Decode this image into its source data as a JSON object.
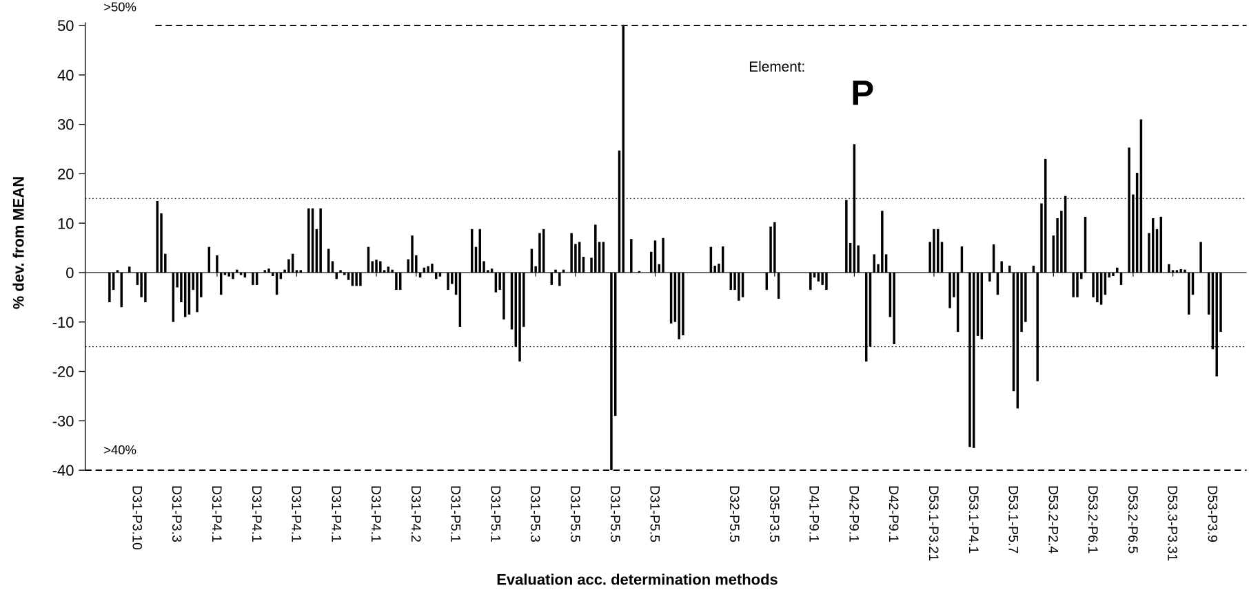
{
  "chart_data": {
    "type": "bar",
    "element_caption": "Element:",
    "element": "P",
    "xlabel": "Evaluation acc. determination methods",
    "ylabel": "% dev. from MEAN",
    "color": "#000000",
    "ylim": [
      -40,
      50
    ],
    "yticks": [
      -40,
      -30,
      -20,
      -10,
      0,
      10,
      20,
      30,
      40,
      50
    ],
    "reference_lines": [
      {
        "value": 50,
        "style": "dashed",
        "label": ">50%"
      },
      {
        "value": -40,
        "style": "dashed",
        "label": ">40%"
      },
      {
        "value": 15,
        "style": "dotted"
      },
      {
        "value": -15,
        "style": "dotted"
      }
    ],
    "categories": [
      null,
      null,
      null,
      null,
      null,
      null,
      null,
      null,
      null,
      null,
      null,
      null,
      null,
      "D31-P3.10",
      null,
      null,
      null,
      null,
      null,
      null,
      null,
      null,
      null,
      "D31-P3.3",
      null,
      null,
      null,
      null,
      null,
      null,
      null,
      null,
      null,
      "D31-P4.1",
      null,
      null,
      null,
      null,
      null,
      null,
      null,
      null,
      null,
      "D31-P4.1",
      null,
      null,
      null,
      null,
      null,
      null,
      null,
      null,
      null,
      "D31-P4.1",
      null,
      null,
      null,
      null,
      null,
      null,
      null,
      null,
      null,
      "D31-P4.1",
      null,
      null,
      null,
      null,
      null,
      null,
      null,
      null,
      null,
      "D31-P4.1",
      null,
      null,
      null,
      null,
      null,
      null,
      null,
      null,
      null,
      "D31-P4.2",
      null,
      null,
      null,
      null,
      null,
      null,
      null,
      null,
      null,
      "D31-P5.1",
      null,
      null,
      null,
      null,
      null,
      null,
      null,
      null,
      null,
      "D31-P5.1",
      null,
      null,
      null,
      null,
      null,
      null,
      null,
      null,
      null,
      "D31-P5.3",
      null,
      null,
      null,
      null,
      null,
      null,
      null,
      null,
      null,
      "D31-P5.5",
      null,
      null,
      null,
      null,
      null,
      null,
      null,
      null,
      null,
      "D31-P5.5",
      null,
      null,
      null,
      null,
      null,
      null,
      null,
      null,
      null,
      "D31-P5.5",
      null,
      null,
      null,
      null,
      null,
      null,
      null,
      null,
      null,
      null,
      null,
      null,
      null,
      null,
      null,
      null,
      null,
      null,
      null,
      "D32-P5.5",
      null,
      null,
      null,
      null,
      null,
      null,
      null,
      null,
      null,
      "D35-P3.5",
      null,
      null,
      null,
      null,
      null,
      null,
      null,
      null,
      null,
      "D41-P9.1",
      null,
      null,
      null,
      null,
      null,
      null,
      null,
      null,
      null,
      "D42-P9.1",
      null,
      null,
      null,
      null,
      null,
      null,
      null,
      null,
      null,
      "D42-P9.1",
      null,
      null,
      null,
      null,
      null,
      null,
      null,
      null,
      null,
      "D53.1-P3.21",
      null,
      null,
      null,
      null,
      null,
      null,
      null,
      null,
      null,
      "D53.1-P4.1",
      null,
      null,
      null,
      null,
      null,
      null,
      null,
      null,
      null,
      "D53.1-P5.7",
      null,
      null,
      null,
      null,
      null,
      null,
      null,
      null,
      null,
      "D53.2-P2.4",
      null,
      null,
      null,
      null,
      null,
      null,
      null,
      null,
      null,
      "D53.2-P6.1",
      null,
      null,
      null,
      null,
      null,
      null,
      null,
      null,
      null,
      "D53.2-P6.5",
      null,
      null,
      null,
      null,
      null,
      null,
      null,
      null,
      null,
      "D53.3-P3.31",
      null,
      null,
      null,
      null,
      null,
      null,
      null,
      null,
      null,
      "D53-P3.9",
      null,
      null,
      null,
      null,
      null,
      null,
      null,
      null
    ],
    "values": [
      0,
      0,
      0,
      0,
      0,
      0,
      -6,
      -3.5,
      0.5,
      -7,
      0,
      1.2,
      0,
      -2.5,
      -5,
      -6,
      0,
      0,
      14.5,
      12,
      3.8,
      0,
      -10,
      -3,
      -6,
      -9,
      -8.5,
      -3.5,
      -8,
      -5,
      0,
      5.2,
      0,
      3.5,
      -4.5,
      -0.5,
      -0.8,
      -1.3,
      0.6,
      -0.5,
      -1,
      0,
      -2.5,
      -2.5,
      0,
      0.5,
      0.8,
      -0.7,
      -4.5,
      -1.3,
      0.6,
      2.7,
      3.8,
      0.5,
      0.5,
      0,
      13,
      13,
      8.8,
      13,
      0,
      4.8,
      2.3,
      -1.3,
      0.5,
      -0.5,
      -1.5,
      -2.7,
      -2.7,
      -2.7,
      0,
      5.2,
      2.3,
      2.6,
      2.3,
      0.5,
      1.2,
      0.6,
      -3.5,
      -3.5,
      0,
      2.7,
      7.5,
      3.5,
      -1,
      1,
      1.3,
      1.8,
      -1.3,
      -0.8,
      0,
      -3.5,
      -2.3,
      -4.5,
      -11,
      0,
      0,
      8.8,
      5.2,
      8.8,
      2.3,
      0.5,
      0.8,
      -4,
      -3.5,
      -9.5,
      0,
      -11.5,
      -15,
      -18,
      -11,
      0,
      4.8,
      1.3,
      8,
      8.8,
      0,
      -2.5,
      0.6,
      -2.7,
      0.6,
      0,
      8,
      5.8,
      6.2,
      3.2,
      0,
      3,
      9.7,
      6.2,
      6.2,
      0,
      -40,
      -29,
      24.7,
      50,
      0,
      6.8,
      0,
      0.3,
      0,
      0,
      4.2,
      6.5,
      1.7,
      7,
      0,
      -10.3,
      -10,
      -13.5,
      -12.7,
      0,
      0,
      0,
      0,
      0,
      0,
      5.2,
      1.4,
      1.8,
      5.3,
      0,
      -3.5,
      -3.5,
      -5.7,
      -5,
      0,
      0,
      0,
      0,
      0,
      -3.5,
      9.3,
      10.2,
      -5.3,
      0,
      0,
      0,
      0,
      0,
      0,
      0,
      -3.5,
      -1,
      -1.8,
      -2.5,
      -3.5,
      0,
      0,
      0,
      0,
      14.7,
      6,
      26,
      5.5,
      0,
      -18,
      -15,
      3.7,
      1.7,
      12.5,
      3.7,
      -9,
      -14.5,
      0,
      0,
      0,
      0,
      0,
      0,
      0,
      0,
      6.2,
      8.8,
      8.8,
      6.2,
      0,
      -7.2,
      -5,
      -12,
      5.3,
      0,
      -35.3,
      -35.5,
      -12.8,
      -13.5,
      0,
      -1.8,
      5.7,
      -4.5,
      2.3,
      0,
      1.4,
      -24,
      -27.5,
      -12,
      -10,
      0,
      1.4,
      -22,
      14,
      23,
      0,
      7.5,
      11,
      12.5,
      15.5,
      0,
      -5,
      -5,
      -1.3,
      11.3,
      0,
      -5,
      -6,
      -6.5,
      -4.5,
      -1,
      -0.7,
      1,
      -2.5,
      0,
      25.3,
      15.8,
      20.2,
      31,
      0,
      8,
      11,
      8.8,
      11.3,
      0,
      1.7,
      0.5,
      0.5,
      0.7,
      0.6,
      -8.5,
      -4.5,
      0,
      6.2,
      0,
      -8.5,
      -15.5,
      -21,
      -12,
      0,
      0,
      0,
      0,
      0,
      0
    ]
  }
}
